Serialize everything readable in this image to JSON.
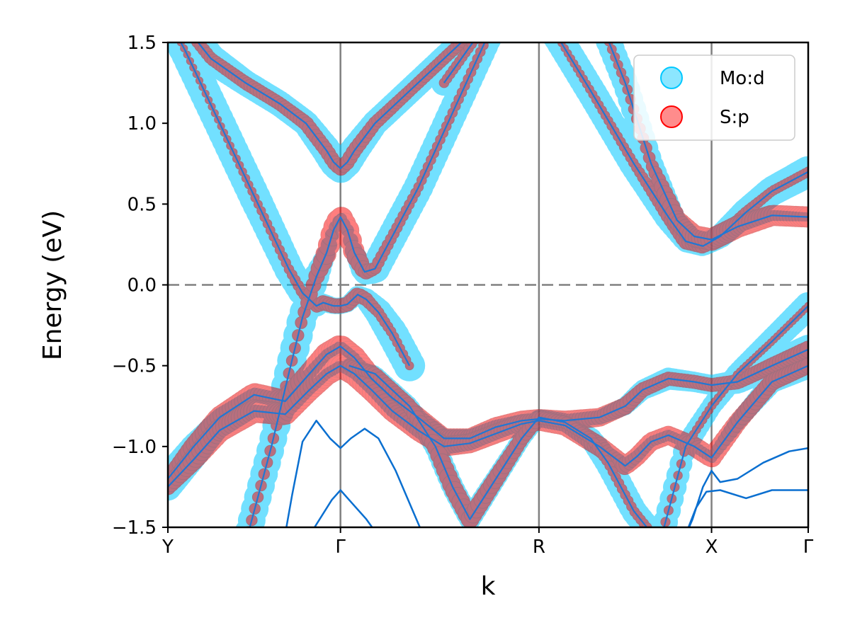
{
  "chart_data": {
    "type": "line",
    "title": "",
    "xlabel": "k",
    "ylabel": "Energy (eV)",
    "ylim": [
      -1.5,
      1.5
    ],
    "yticks": [
      1.5,
      1.0,
      0.5,
      0.0,
      -0.5,
      -1.0,
      -1.5
    ],
    "ytick_labels": [
      "1.5",
      "1.0",
      "0.5",
      "0.0",
      "−0.5",
      "−1.0",
      "−1.5"
    ],
    "kpoints": [
      {
        "label": "Y",
        "k": 0.0
      },
      {
        "label": "Γ",
        "k": 1.0
      },
      {
        "label": "R",
        "k": 2.15
      },
      {
        "label": "X",
        "k": 3.15
      },
      {
        "label": "Γ",
        "k": 3.71
      }
    ],
    "fermi_level": 0.0,
    "legend": {
      "position": "top-right",
      "entries": [
        {
          "label": "Mo:d",
          "color": "#00C8FF"
        },
        {
          "label": "S:p",
          "color": "#FF0000"
        }
      ]
    },
    "colors": {
      "band_line": "#1F77D4",
      "mo_d": "#00C8FF",
      "s_p": "#FF0000",
      "grid": "#808080"
    },
    "series": [
      {
        "name": "cb1-left",
        "x": [
          0.1,
          0.25,
          0.45,
          0.65,
          0.8,
          0.92,
          0.96,
          1.0,
          1.04,
          1.08,
          1.2,
          1.4,
          1.6,
          1.75,
          1.85
        ],
        "y": [
          1.6,
          1.4,
          1.25,
          1.12,
          1.0,
          0.83,
          0.76,
          0.72,
          0.76,
          0.83,
          1.0,
          1.2,
          1.4,
          1.55,
          1.65
        ],
        "mo": [
          0.8,
          0.8,
          0.7,
          0.7,
          0.7,
          0.8,
          0.8,
          0.8,
          0.8,
          0.8,
          0.7,
          0.7,
          0.7,
          0.7,
          0.7
        ],
        "s": [
          0.5,
          0.5,
          0.55,
          0.55,
          0.6,
          0.6,
          0.6,
          0.6,
          0.6,
          0.6,
          0.55,
          0.5,
          0.5,
          0.5,
          0.5
        ]
      },
      {
        "name": "dirac-down-left",
        "x": [
          -0.05,
          0.1,
          0.3,
          0.5,
          0.7,
          0.78,
          0.86,
          0.9,
          0.96,
          1.0,
          1.04,
          1.1,
          1.15,
          1.22,
          1.3,
          1.4
        ],
        "y": [
          1.75,
          1.45,
          1.0,
          0.55,
          0.1,
          -0.05,
          -0.13,
          -0.11,
          -0.13,
          -0.13,
          -0.12,
          -0.06,
          -0.09,
          -0.17,
          -0.3,
          -0.5
        ],
        "mo": [
          0.85,
          0.85,
          0.85,
          0.85,
          0.8,
          0.75,
          0.6,
          0.5,
          0.45,
          0.45,
          0.45,
          0.5,
          0.6,
          0.75,
          0.85,
          0.85
        ],
        "s": [
          0.3,
          0.3,
          0.3,
          0.35,
          0.4,
          0.45,
          0.55,
          0.6,
          0.6,
          0.6,
          0.6,
          0.6,
          0.55,
          0.45,
          0.4,
          0.35
        ]
      },
      {
        "name": "dirac-up-right",
        "x": [
          0.45,
          0.6,
          0.7,
          0.78,
          0.86,
          0.92,
          0.96,
          1.0,
          1.04,
          1.08,
          1.14,
          1.2,
          1.3,
          1.45,
          1.6,
          1.75,
          1.9
        ],
        "y": [
          -1.6,
          -1.0,
          -0.55,
          -0.2,
          0.05,
          0.2,
          0.34,
          0.42,
          0.34,
          0.2,
          0.08,
          0.1,
          0.3,
          0.6,
          0.95,
          1.3,
          1.65
        ],
        "mo": [
          0.75,
          0.75,
          0.8,
          0.8,
          0.7,
          0.5,
          0.35,
          0.3,
          0.35,
          0.5,
          0.7,
          0.8,
          0.8,
          0.8,
          0.8,
          0.8,
          0.8
        ],
        "s": [
          0.45,
          0.45,
          0.45,
          0.5,
          0.65,
          0.85,
          0.95,
          0.95,
          0.95,
          0.85,
          0.65,
          0.5,
          0.45,
          0.4,
          0.4,
          0.4,
          0.4
        ]
      },
      {
        "name": "vb1",
        "x": [
          0.0,
          0.15,
          0.3,
          0.5,
          0.68,
          0.82,
          0.92,
          1.0,
          1.08,
          1.18,
          1.3,
          1.45,
          1.6,
          1.75,
          1.9,
          2.05,
          2.15,
          2.3,
          2.5,
          2.65,
          2.75,
          2.9,
          3.05,
          3.15,
          3.3,
          3.5,
          3.71
        ],
        "y": [
          -1.2,
          -1.0,
          -0.82,
          -0.68,
          -0.72,
          -0.55,
          -0.43,
          -0.38,
          -0.45,
          -0.58,
          -0.7,
          -0.82,
          -0.95,
          -0.95,
          -0.88,
          -0.84,
          -0.83,
          -0.84,
          -0.82,
          -0.75,
          -0.65,
          -0.58,
          -0.6,
          -0.62,
          -0.6,
          -0.5,
          -0.4
        ],
        "mo": [
          0.8,
          0.7,
          0.5,
          0.4,
          0.4,
          0.35,
          0.3,
          0.3,
          0.3,
          0.35,
          0.4,
          0.45,
          0.5,
          0.5,
          0.4,
          0.35,
          0.35,
          0.35,
          0.4,
          0.5,
          0.55,
          0.6,
          0.55,
          0.55,
          0.65,
          0.75,
          0.8
        ],
        "s": [
          0.6,
          0.8,
          0.9,
          0.95,
          0.9,
          0.9,
          0.95,
          0.95,
          0.95,
          0.9,
          0.85,
          0.8,
          0.8,
          0.8,
          0.8,
          0.8,
          0.8,
          0.8,
          0.75,
          0.7,
          0.6,
          0.55,
          0.55,
          0.55,
          0.6,
          0.65,
          0.7
        ]
      },
      {
        "name": "vb2",
        "x": [
          0.0,
          0.15,
          0.3,
          0.5,
          0.68,
          0.82,
          0.92,
          1.0,
          1.08,
          1.18,
          1.3,
          1.45,
          1.6,
          1.75,
          1.9,
          2.05,
          2.15,
          2.3,
          2.5,
          2.65,
          2.72,
          2.8,
          2.9,
          3.05,
          3.15,
          3.3,
          3.5,
          3.71
        ],
        "y": [
          -1.25,
          -1.08,
          -0.9,
          -0.78,
          -0.8,
          -0.65,
          -0.55,
          -0.5,
          -0.55,
          -0.65,
          -0.78,
          -0.9,
          -1.0,
          -0.98,
          -0.92,
          -0.86,
          -0.84,
          -0.87,
          -1.0,
          -1.12,
          -1.06,
          -0.97,
          -0.93,
          -1.0,
          -1.07,
          -0.85,
          -0.6,
          -0.5
        ],
        "mo": [
          0.75,
          0.6,
          0.45,
          0.35,
          0.35,
          0.3,
          0.3,
          0.3,
          0.3,
          0.3,
          0.35,
          0.4,
          0.45,
          0.4,
          0.35,
          0.35,
          0.35,
          0.35,
          0.35,
          0.4,
          0.35,
          0.3,
          0.3,
          0.3,
          0.3,
          0.45,
          0.6,
          0.7
        ],
        "s": [
          0.65,
          0.85,
          0.95,
          0.95,
          0.9,
          0.9,
          0.95,
          0.95,
          0.95,
          0.9,
          0.85,
          0.85,
          0.8,
          0.8,
          0.8,
          0.8,
          0.8,
          0.8,
          0.8,
          0.75,
          0.75,
          0.75,
          0.75,
          0.8,
          0.8,
          0.75,
          0.7,
          0.65
        ]
      },
      {
        "name": "vb-dip-R",
        "x": [
          1.05,
          1.2,
          1.4,
          1.55,
          1.65,
          1.75,
          1.9,
          2.05,
          2.15,
          2.3,
          2.45,
          2.55,
          2.7,
          2.85,
          3.0,
          3.15,
          3.3,
          3.5,
          3.71
        ],
        "y": [
          -0.5,
          -0.55,
          -0.75,
          -1.0,
          -1.25,
          -1.45,
          -1.2,
          -0.95,
          -0.82,
          -0.85,
          -0.95,
          -1.1,
          -1.4,
          -1.6,
          -1.0,
          -0.75,
          -0.55,
          -0.35,
          -0.13
        ],
        "mo": [
          0.4,
          0.45,
          0.5,
          0.6,
          0.6,
          0.6,
          0.55,
          0.5,
          0.45,
          0.5,
          0.6,
          0.7,
          0.7,
          0.7,
          0.6,
          0.55,
          0.6,
          0.7,
          0.75
        ],
        "s": [
          0.5,
          0.55,
          0.6,
          0.7,
          0.75,
          0.75,
          0.7,
          0.6,
          0.55,
          0.5,
          0.45,
          0.4,
          0.4,
          0.4,
          0.35,
          0.35,
          0.3,
          0.3,
          0.3
        ]
      },
      {
        "name": "cb-right-steep",
        "x": [
          2.1,
          2.25,
          2.45,
          2.7,
          2.9,
          3.0,
          3.1,
          3.2,
          3.35,
          3.5,
          3.71
        ],
        "y": [
          1.7,
          1.55,
          1.2,
          0.75,
          0.42,
          0.27,
          0.24,
          0.3,
          0.45,
          0.58,
          0.7
        ],
        "mo": [
          0.75,
          0.8,
          0.8,
          0.8,
          0.75,
          0.6,
          0.55,
          0.65,
          0.75,
          0.8,
          0.85
        ],
        "s": [
          0.3,
          0.3,
          0.35,
          0.4,
          0.55,
          0.65,
          0.6,
          0.5,
          0.45,
          0.4,
          0.4
        ]
      },
      {
        "name": "cb-right-flat",
        "x": [
          2.5,
          2.65,
          2.8,
          2.95,
          3.05,
          3.15,
          3.3,
          3.5,
          3.71
        ],
        "y": [
          1.65,
          1.25,
          0.75,
          0.4,
          0.3,
          0.28,
          0.36,
          0.43,
          0.42
        ],
        "mo": [
          0.7,
          0.7,
          0.65,
          0.5,
          0.4,
          0.35,
          0.35,
          0.3,
          0.25
        ],
        "s": [
          0.35,
          0.4,
          0.5,
          0.8,
          0.9,
          0.9,
          0.9,
          0.85,
          0.85
        ]
      },
      {
        "name": "cb-top-gamma",
        "x": [
          1.6,
          1.8,
          2.05,
          2.15
        ],
        "y": [
          1.25,
          1.55,
          1.75,
          1.8
        ],
        "mo": [
          0.7,
          0.7,
          0.7,
          0.7
        ],
        "s": [
          0.4,
          0.4,
          0.4,
          0.4
        ]
      }
    ],
    "plain_series": [
      {
        "name": "deep1",
        "x": [
          0.67,
          0.72,
          0.78,
          0.86,
          0.94,
          1.0,
          1.06,
          1.14,
          1.22,
          1.32,
          1.42,
          1.52
        ],
        "y": [
          -1.6,
          -1.3,
          -0.97,
          -0.84,
          -0.95,
          -1.01,
          -0.95,
          -0.89,
          -0.95,
          -1.15,
          -1.4,
          -1.65
        ]
      },
      {
        "name": "deep2",
        "x": [
          0.75,
          0.85,
          0.95,
          1.0,
          1.05,
          1.15,
          1.25
        ],
        "y": [
          -1.6,
          -1.5,
          -1.33,
          -1.27,
          -1.33,
          -1.45,
          -1.6
        ]
      },
      {
        "name": "deep3",
        "x": [
          2.98,
          3.04,
          3.1,
          3.15,
          3.2,
          3.3,
          3.45,
          3.6,
          3.71
        ],
        "y": [
          -1.6,
          -1.45,
          -1.25,
          -1.15,
          -1.22,
          -1.2,
          -1.1,
          -1.03,
          -1.01
        ]
      },
      {
        "name": "deep4",
        "x": [
          2.98,
          3.06,
          3.12,
          3.2,
          3.35,
          3.5,
          3.71
        ],
        "y": [
          -1.6,
          -1.38,
          -1.28,
          -1.27,
          -1.32,
          -1.27,
          -1.27
        ]
      }
    ]
  }
}
